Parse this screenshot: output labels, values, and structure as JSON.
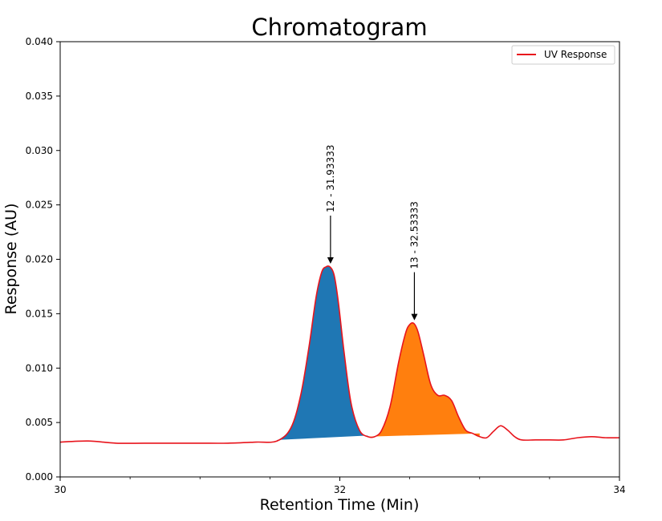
{
  "chart_data": {
    "type": "line",
    "title": "Chromatogram",
    "xlabel": "Retention Time (Min)",
    "ylabel": "Response (AU)",
    "xlim": [
      30,
      34
    ],
    "ylim": [
      0,
      0.04
    ],
    "x_ticks": [
      "30",
      "32",
      "34"
    ],
    "y_ticks": [
      "0.000",
      "0.005",
      "0.010",
      "0.015",
      "0.020",
      "0.025",
      "0.030",
      "0.035",
      "0.040"
    ],
    "grid": false,
    "legend_position": "top-right",
    "series": [
      {
        "name": "UV Response",
        "color": "#e8141c",
        "x": [
          30.0,
          30.2,
          30.4,
          30.6,
          30.8,
          31.0,
          31.2,
          31.4,
          31.55,
          31.65,
          31.72,
          31.78,
          31.83,
          31.87,
          31.9,
          31.93,
          31.96,
          31.99,
          32.03,
          32.08,
          32.14,
          32.2,
          32.25,
          32.3,
          32.36,
          32.42,
          32.47,
          32.5,
          32.53,
          32.56,
          32.6,
          32.65,
          32.7,
          32.75,
          32.8,
          32.85,
          32.9,
          32.95,
          33.0,
          33.05,
          33.1,
          33.15,
          33.2,
          33.25,
          33.3,
          33.4,
          33.5,
          33.6,
          33.7,
          33.8,
          33.9,
          34.0
        ],
        "y": [
          0.0032,
          0.0033,
          0.0031,
          0.0031,
          0.0031,
          0.0031,
          0.0031,
          0.0032,
          0.0033,
          0.0045,
          0.0075,
          0.012,
          0.0165,
          0.0188,
          0.0193,
          0.0193,
          0.0185,
          0.016,
          0.0115,
          0.0068,
          0.0043,
          0.0037,
          0.0037,
          0.0043,
          0.0065,
          0.0105,
          0.0132,
          0.014,
          0.0141,
          0.0133,
          0.0112,
          0.0085,
          0.0075,
          0.0075,
          0.007,
          0.0055,
          0.0043,
          0.004,
          0.0037,
          0.0036,
          0.0042,
          0.0047,
          0.0043,
          0.0037,
          0.0034,
          0.0034,
          0.0034,
          0.0034,
          0.0036,
          0.0037,
          0.0036,
          0.0036
        ]
      }
    ],
    "peaks": [
      {
        "label": "12 - 31.93333",
        "apex_x": 31.93333,
        "apex_y": 0.0193,
        "color": "#1f77b4",
        "x_start": 31.55,
        "x_end": 32.2,
        "baseline_start": 0.0034,
        "baseline_end": 0.0038
      },
      {
        "label": "13 - 32.53333",
        "apex_x": 32.53333,
        "apex_y": 0.0141,
        "color": "#ff7f0e",
        "x_start": 32.2,
        "x_end": 33.0,
        "baseline_start": 0.0037,
        "baseline_end": 0.004
      }
    ]
  }
}
